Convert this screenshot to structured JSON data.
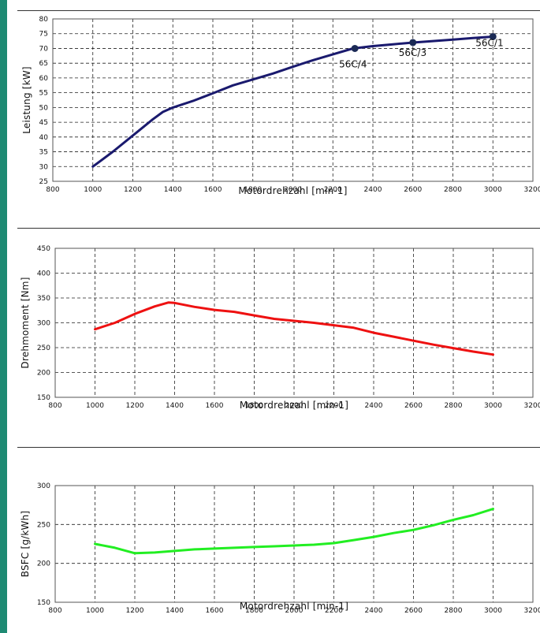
{
  "chart_data": [
    {
      "type": "line",
      "xlabel": "Motordrehzahl [min-1]",
      "ylabel": "Leistung [kW]",
      "xlim": [
        800,
        3200
      ],
      "ylim": [
        25,
        80
      ],
      "x_ticks": [
        800,
        1000,
        1200,
        1400,
        1600,
        1800,
        2000,
        2200,
        2400,
        2600,
        2800,
        3000,
        3200
      ],
      "x_tick_labels": [
        "800",
        "1000",
        "1200",
        "1400",
        "1600",
        "1800",
        "2000",
        "2200",
        "2400",
        "2600",
        "2800",
        "3000",
        "3200"
      ],
      "y_ticks": [
        25,
        30,
        35,
        40,
        45,
        50,
        55,
        60,
        65,
        70,
        75,
        80
      ],
      "y_tick_labels": [
        "25",
        "30",
        "35",
        "40",
        "45",
        "50",
        "55",
        "60",
        "65",
        "70",
        "75",
        "80"
      ],
      "grid": true,
      "series": [
        {
          "color": "#1a1a6e",
          "x": [
            1000,
            1100,
            1200,
            1300,
            1350,
            1400,
            1500,
            1600,
            1700,
            1800,
            1900,
            2000,
            2100,
            2200,
            2300,
            2400,
            2500,
            2600,
            2700,
            2800,
            2900,
            3000
          ],
          "y": [
            30,
            35,
            40.5,
            46,
            48.5,
            50,
            52.2,
            54.8,
            57.5,
            59.5,
            61.5,
            63.8,
            66,
            68,
            70,
            70.8,
            71.4,
            72,
            72.5,
            73,
            73.5,
            74
          ]
        }
      ],
      "markers": [
        {
          "x": 2310,
          "y": 70,
          "label": "56C/4"
        },
        {
          "x": 2600,
          "y": 72,
          "label": "56C/3"
        },
        {
          "x": 3000,
          "y": 74,
          "label": "56C/1"
        }
      ]
    },
    {
      "type": "line",
      "xlabel": "Motordrehzahl [min-1]",
      "ylabel": "Drehmoment [Nm]",
      "xlim": [
        800,
        3200
      ],
      "ylim": [
        150,
        450
      ],
      "x_ticks": [
        800,
        1000,
        1200,
        1400,
        1600,
        1800,
        2000,
        2200,
        2400,
        2600,
        2800,
        3000,
        3200
      ],
      "x_tick_labels": [
        "800",
        "1000",
        "1200",
        "1400",
        "1600",
        "1800",
        "2000",
        "2200",
        "2400",
        "2600",
        "2800",
        "3000",
        "3200"
      ],
      "y_ticks": [
        150,
        200,
        250,
        300,
        350,
        400,
        450
      ],
      "y_tick_labels": [
        "150",
        "200",
        "250",
        "300",
        "350",
        "400",
        "450"
      ],
      "grid": true,
      "series": [
        {
          "color": "#ee1111",
          "x": [
            1000,
            1100,
            1200,
            1300,
            1370,
            1400,
            1500,
            1600,
            1700,
            1800,
            1900,
            2000,
            2100,
            2200,
            2300,
            2400,
            2500,
            2600,
            2700,
            2800,
            2900,
            3000
          ],
          "y": [
            287,
            300,
            318,
            333,
            341,
            340,
            332,
            326,
            322,
            315,
            308,
            304,
            300,
            295,
            290,
            280,
            272,
            264,
            256,
            249,
            242,
            236
          ]
        }
      ]
    },
    {
      "type": "line",
      "xlabel": "Motordrehzahl [min-1]",
      "ylabel": "BSFC [g/kWh]",
      "xlim": [
        800,
        3200
      ],
      "ylim": [
        150,
        300
      ],
      "x_ticks": [
        800,
        1000,
        1200,
        1400,
        1600,
        1800,
        2000,
        2200,
        2400,
        2600,
        2800,
        3000,
        3200
      ],
      "x_tick_labels": [
        "800",
        "1000",
        "1200",
        "1400",
        "1600",
        "1800",
        "2000",
        "2200",
        "2400",
        "2600",
        "2800",
        "3000",
        "3200"
      ],
      "y_ticks": [
        150,
        200,
        250,
        300
      ],
      "y_tick_labels": [
        "150",
        "200",
        "250",
        "300"
      ],
      "grid": true,
      "series": [
        {
          "color": "#22ee22",
          "x": [
            1000,
            1100,
            1200,
            1300,
            1400,
            1500,
            1600,
            1700,
            1800,
            1900,
            2000,
            2100,
            2200,
            2300,
            2400,
            2500,
            2600,
            2700,
            2800,
            2900,
            3000
          ],
          "y": [
            225,
            220,
            213,
            214,
            216,
            218,
            219,
            220,
            221,
            222,
            223,
            224,
            226,
            230,
            234,
            239,
            243,
            249,
            256,
            262,
            270
          ]
        }
      ]
    }
  ]
}
